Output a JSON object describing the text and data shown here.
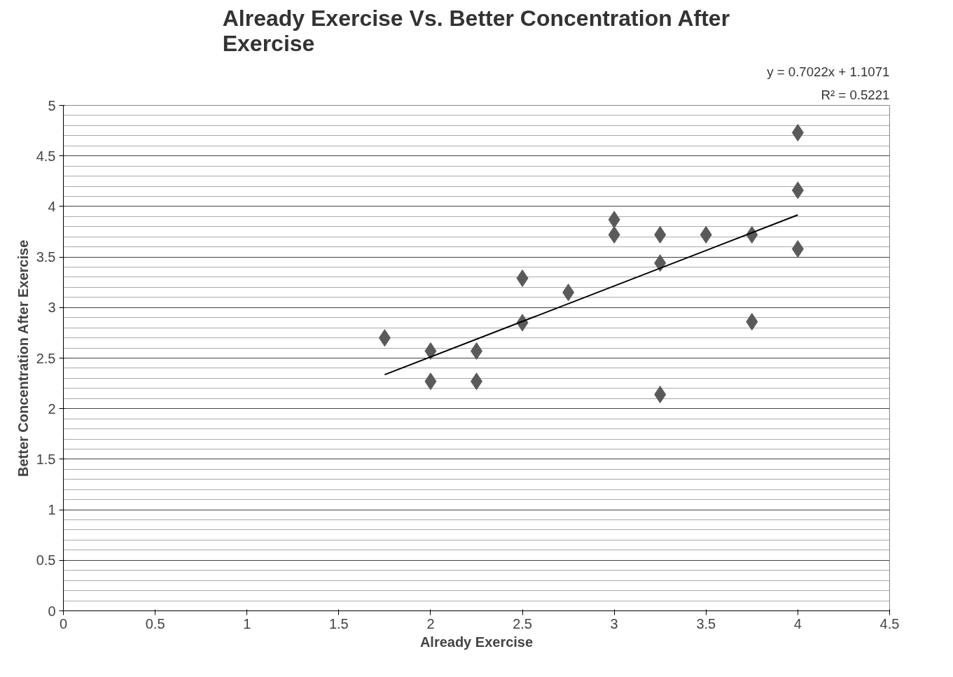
{
  "chart_data": {
    "type": "scatter",
    "title": "Already Exercise Vs. Better Concentration After Exercise",
    "xlabel": "Already Exercise",
    "ylabel": "Better Concentration After Exercise",
    "annotations": [
      "y = 0.7022x + 1.1071",
      "R² = 0.5221"
    ],
    "grid": "y",
    "xlim": [
      0,
      4.5
    ],
    "xticks": [
      0,
      0.5,
      1,
      1.5,
      2,
      2.5,
      3,
      3.5,
      4,
      4.5
    ],
    "ylim": [
      0,
      5
    ],
    "yticks": [
      0,
      0.5,
      1,
      1.5,
      2,
      2.5,
      3,
      3.5,
      4,
      4.5,
      5
    ],
    "series": [
      {
        "marker": "diamond",
        "color": "#5a5a5a",
        "x": [
          1.75,
          2,
          2,
          2.25,
          2.25,
          2.5,
          2.5,
          2.75,
          3,
          3,
          3.25,
          3.25,
          3.25,
          3.5,
          3.75,
          3.75,
          4,
          4,
          4
        ],
        "values": [
          2.7,
          2.57,
          2.27,
          2.57,
          2.27,
          3.29,
          2.85,
          3.15,
          3.87,
          3.72,
          3.72,
          3.44,
          2.14,
          3.72,
          3.72,
          2.86,
          4.73,
          4.16,
          3.58
        ]
      },
      {
        "type": "line",
        "color": "#000000",
        "x": [
          1.75,
          4
        ],
        "values": [
          2.336,
          3.916
        ]
      }
    ]
  }
}
